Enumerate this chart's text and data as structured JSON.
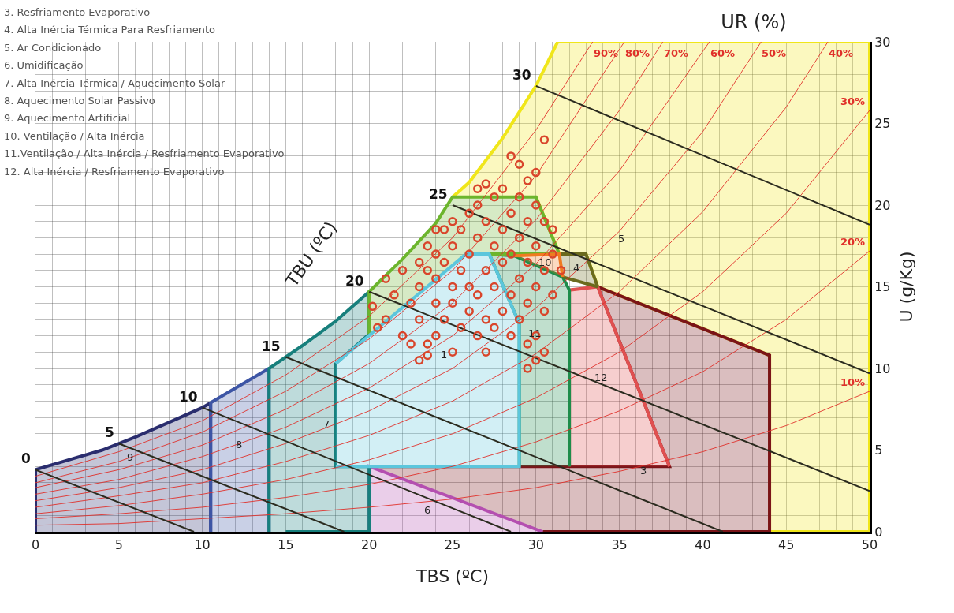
{
  "chart_data": {
    "type": "scatter",
    "title": "UR (%)",
    "xlabel": "TBS (ºC)",
    "ylabel": "U (g/Kg)",
    "xlim": [
      0,
      50
    ],
    "ylim": [
      0,
      30
    ],
    "xticks": [
      0,
      {
        "value": 1,
        "label": null
      },
      {
        "value": 2,
        "label": null
      },
      {
        "value": 3,
        "label": null
      },
      {
        "value": 4,
        "label": null
      },
      5,
      {
        "value": 6,
        "label": null
      },
      {
        "value": 7,
        "label": null
      },
      {
        "value": 8,
        "label": null
      },
      {
        "value": 9,
        "label": null
      },
      10,
      {
        "value": 11,
        "label": null
      },
      {
        "value": 12,
        "label": null
      },
      {
        "value": 13,
        "label": null
      },
      {
        "value": 14,
        "label": null
      },
      15,
      {
        "value": 16,
        "label": null
      },
      {
        "value": 17,
        "label": null
      },
      {
        "value": 18,
        "label": null
      },
      {
        "value": 19,
        "label": null
      },
      20,
      {
        "value": 21,
        "label": null
      },
      {
        "value": 22,
        "label": null
      },
      {
        "value": 23,
        "label": null
      },
      {
        "value": 24,
        "label": null
      },
      25,
      {
        "value": 26,
        "label": null
      },
      {
        "value": 27,
        "label": null
      },
      {
        "value": 28,
        "label": null
      },
      {
        "value": 29,
        "label": null
      },
      30,
      {
        "value": 31,
        "label": null
      },
      {
        "value": 32,
        "label": null
      },
      {
        "value": 33,
        "label": null
      },
      {
        "value": 34,
        "label": null
      },
      35,
      {
        "value": 36,
        "label": null
      },
      {
        "value": 37,
        "label": null
      },
      {
        "value": 38,
        "label": null
      },
      {
        "value": 39,
        "label": null
      },
      40,
      {
        "value": 41,
        "label": null
      },
      {
        "value": 42,
        "label": null
      },
      {
        "value": 43,
        "label": null
      },
      {
        "value": 44,
        "label": null
      },
      45,
      {
        "value": 46,
        "label": null
      },
      {
        "value": 47,
        "label": null
      },
      {
        "value": 48,
        "label": null
      },
      {
        "value": 49,
        "label": null
      },
      50
    ],
    "yticks": [
      0,
      {
        "value": 1,
        "label": null
      },
      {
        "value": 2,
        "label": null
      },
      {
        "value": 3,
        "label": null
      },
      {
        "value": 4,
        "label": null
      },
      5,
      {
        "value": 6,
        "label": null
      },
      {
        "value": 7,
        "label": null
      },
      {
        "value": 8,
        "label": null
      },
      {
        "value": 9,
        "label": null
      },
      10,
      {
        "value": 11,
        "label": null
      },
      {
        "value": 12,
        "label": null
      },
      {
        "value": 13,
        "label": null
      },
      {
        "value": 14,
        "label": null
      },
      15,
      {
        "value": 16,
        "label": null
      },
      {
        "value": 17,
        "label": null
      },
      {
        "value": 18,
        "label": null
      },
      {
        "value": 19,
        "label": null
      },
      20,
      {
        "value": 21,
        "label": null
      },
      {
        "value": 22,
        "label": null
      },
      {
        "value": 23,
        "label": null
      },
      {
        "value": 24,
        "label": null
      },
      25,
      {
        "value": 26,
        "label": null
      },
      {
        "value": 27,
        "label": null
      },
      {
        "value": 28,
        "label": null
      },
      {
        "value": 29,
        "label": null
      },
      30
    ],
    "grid": true,
    "series": [
      {
        "type": "area",
        "name": "5",
        "color": "#f0e619",
        "x": [
          25,
          26,
          28,
          30,
          31.3,
          50,
          50,
          44,
          44,
          33.7,
          33,
          31.4,
          30
        ],
        "values": [
          20.5,
          21.4,
          24.1,
          27.3,
          30,
          30,
          0,
          0,
          10.8,
          15,
          17,
          17,
          20.5
        ]
      },
      {
        "type": "area",
        "name": "3",
        "color": "#7a1418",
        "x": [
          20,
          38,
          33.7,
          44,
          44,
          42,
          40,
          36,
          30.4
        ],
        "values": [
          4,
          4,
          15,
          10.8,
          0,
          0,
          0,
          0,
          0
        ]
      },
      {
        "type": "area",
        "name": "12",
        "color": "#e05050",
        "x": [
          32,
          32,
          33.7,
          38
        ],
        "values": [
          4,
          14.8,
          15,
          4
        ]
      },
      {
        "type": "area",
        "name": "6",
        "color": "#b44fb0",
        "x": [
          20,
          20,
          30.4
        ],
        "values": [
          0,
          4,
          0
        ]
      },
      {
        "type": "area",
        "name": "9",
        "color": "#2a2d6e",
        "x": [
          0,
          0,
          2,
          4,
          6,
          8,
          10,
          10.5,
          10.5
        ],
        "values": [
          0,
          3.8,
          4.4,
          5,
          5.8,
          6.7,
          7.6,
          7.9,
          0
        ]
      },
      {
        "type": "area",
        "name": "8",
        "color": "#3d55a5",
        "x": [
          10.5,
          10.5,
          12,
          14,
          14
        ],
        "values": [
          0,
          7.9,
          8.8,
          10,
          0
        ]
      },
      {
        "type": "area",
        "name": "7",
        "color": "#177f7c",
        "x": [
          14,
          14,
          16,
          18,
          20,
          20,
          18,
          18,
          20,
          20,
          16,
          15
        ],
        "values": [
          0,
          10,
          11.4,
          12.9,
          14.7,
          12.1,
          10.3,
          4,
          4,
          0,
          0,
          0
        ]
      },
      {
        "type": "area",
        "name": "11",
        "color": "#1e8c4a",
        "x": [
          29,
          29,
          27.2,
          28.7,
          31.6,
          32,
          32
        ],
        "values": [
          4,
          12.75,
          17,
          16.9,
          15.6,
          14.8,
          4
        ]
      },
      {
        "type": "area",
        "color": "#6cb52d",
        "x": [
          20,
          20,
          22,
          24,
          25,
          30,
          31.4,
          25.8
        ],
        "values": [
          12.1,
          14.7,
          16.7,
          18.9,
          20.5,
          20.5,
          17,
          17
        ]
      },
      {
        "type": "area",
        "name": "4",
        "color": "#6b6a1e",
        "x": [
          31.4,
          33,
          33.7,
          31.6
        ],
        "values": [
          17,
          17,
          15,
          15.6
        ]
      },
      {
        "type": "area",
        "name": "10",
        "color": "#f07a20",
        "x": [
          28.7,
          31.4,
          31.6
        ],
        "values": [
          16.9,
          17,
          15.6
        ]
      },
      {
        "type": "area",
        "name": "1",
        "color": "#5cc6dc",
        "x": [
          18,
          25.8,
          27.2,
          29,
          29,
          18
        ],
        "values": [
          10.3,
          17,
          17,
          12.75,
          4,
          4
        ]
      },
      {
        "type": "line",
        "name": "90%",
        "color": "#e0302a",
        "x": [
          33.4,
          30,
          25,
          20,
          15,
          10,
          5,
          0
        ],
        "values": [
          30,
          24.6,
          18,
          13.2,
          9.6,
          6.8,
          4.9,
          3.4
        ]
      },
      {
        "type": "line",
        "name": "80%",
        "color": "#e0302a",
        "x": [
          35.3,
          30,
          25,
          20,
          15,
          10,
          5,
          0
        ],
        "values": [
          30,
          21.8,
          16,
          11.8,
          8.6,
          6.1,
          4.3,
          3
        ]
      },
      {
        "type": "line",
        "name": "70%",
        "color": "#e0302a",
        "x": [
          37.6,
          35,
          30,
          25,
          20,
          15,
          10,
          5,
          0
        ],
        "values": [
          30,
          25.8,
          19.1,
          14,
          10.3,
          7.5,
          5.3,
          3.8,
          2.7
        ]
      },
      {
        "type": "line",
        "name": "60%",
        "color": "#e0302a",
        "x": [
          40.4,
          35,
          30,
          25,
          20,
          15,
          10,
          5,
          0
        ],
        "values": [
          30,
          22.1,
          16.4,
          12,
          8.8,
          6.4,
          4.6,
          3.2,
          2.3
        ]
      },
      {
        "type": "line",
        "name": "50%",
        "color": "#e0302a",
        "x": [
          43.5,
          40,
          35,
          30,
          25,
          20,
          15,
          10,
          5,
          0
        ],
        "values": [
          30,
          24.5,
          18.4,
          13.7,
          10,
          7.4,
          5.4,
          3.8,
          2.7,
          1.9
        ]
      },
      {
        "type": "line",
        "name": "40%",
        "color": "#e0302a",
        "x": [
          47.5,
          45,
          40,
          35,
          30,
          25,
          20,
          15,
          10,
          5,
          0
        ],
        "values": [
          30,
          26,
          19.6,
          14.7,
          10.9,
          8,
          5.9,
          4.3,
          3,
          2.2,
          1.5
        ]
      },
      {
        "type": "line",
        "name": "30%",
        "color": "#e0302a",
        "x": [
          50,
          45,
          40,
          35,
          30,
          25,
          20,
          15,
          10,
          5,
          0
        ],
        "values": [
          25.8,
          19.5,
          14.7,
          11,
          8.2,
          6,
          4.4,
          3.2,
          2.3,
          1.6,
          1.1
        ]
      },
      {
        "type": "line",
        "name": "20%",
        "color": "#e0302a",
        "x": [
          50,
          45,
          40,
          35,
          30,
          25,
          20,
          15,
          10,
          5,
          0
        ],
        "values": [
          17.2,
          13,
          9.8,
          7.4,
          5.5,
          4,
          2.9,
          2.1,
          1.5,
          1.1,
          0.8
        ]
      },
      {
        "type": "line",
        "name": "10%",
        "color": "#e0302a",
        "x": [
          50,
          45,
          40,
          35,
          30,
          25,
          20,
          15,
          10,
          5,
          0
        ],
        "values": [
          8.6,
          6.5,
          4.9,
          3.7,
          2.7,
          2,
          1.5,
          1.1,
          0.8,
          0.5,
          0.4
        ]
      },
      {
        "type": "line",
        "name": "0",
        "color": "#2b2b1f",
        "x": [
          0,
          9.5
        ],
        "values": [
          3.8,
          0
        ]
      },
      {
        "type": "line",
        "name": "5",
        "color": "#2b2b1f",
        "x": [
          5,
          18.5
        ],
        "values": [
          5.4,
          0
        ]
      },
      {
        "type": "line",
        "name": "10",
        "color": "#2b2b1f",
        "x": [
          10,
          28.5
        ],
        "values": [
          7.6,
          0
        ]
      },
      {
        "type": "line",
        "name": "15",
        "color": "#2b2b1f",
        "x": [
          15,
          41.2
        ],
        "values": [
          10.7,
          0
        ]
      },
      {
        "type": "line",
        "name": "20",
        "color": "#2b2b1f",
        "x": [
          20,
          50
        ],
        "values": [
          14.7,
          2.5
        ]
      },
      {
        "type": "line",
        "name": "25",
        "color": "#2b2b1f",
        "x": [
          25,
          50
        ],
        "values": [
          20,
          9.7
        ]
      },
      {
        "type": "line",
        "name": "30",
        "color": "#2b2b1f",
        "x": [
          30,
          40,
          50
        ],
        "values": [
          27.3,
          23.05,
          18.8
        ]
      },
      {
        "marker": "circle",
        "color": "#d9452b",
        "x": [
          20.2,
          20.5,
          21,
          21.5,
          21,
          22,
          22,
          22.5,
          22.5,
          23,
          23,
          23,
          23,
          23.5,
          23.5,
          23.5,
          24,
          24,
          24,
          24,
          24,
          24.5,
          24.5,
          24.5,
          25,
          25,
          25,
          25,
          25,
          25.5,
          25.5,
          25.5,
          26,
          26,
          26,
          26,
          26.5,
          26.5,
          26.5,
          26.5,
          27,
          27,
          27,
          27,
          27.5,
          27.5,
          27.5,
          27.5,
          28,
          28,
          28,
          28,
          28.5,
          28.5,
          28.5,
          28.5,
          29,
          29,
          29,
          29,
          29,
          29.5,
          29.5,
          29.5,
          29.5,
          29.5,
          30,
          30,
          30,
          30,
          30,
          30.5,
          30.5,
          30.5,
          30.5,
          31,
          31,
          31,
          31.5,
          30,
          29.5,
          30.5,
          23.5,
          27,
          28.5,
          26.5
        ],
        "values": [
          13.8,
          12.5,
          13,
          14.5,
          15.5,
          16,
          12,
          11.5,
          14,
          15,
          16.5,
          13,
          10.5,
          11.5,
          16,
          17.5,
          12,
          14,
          15.5,
          17,
          18.5,
          13,
          16.5,
          18.5,
          11,
          14,
          15,
          17.5,
          19,
          12.5,
          16,
          18.5,
          13.5,
          15,
          17,
          19.5,
          12,
          14.5,
          18,
          20,
          11,
          13,
          16,
          19,
          12.5,
          15,
          17.5,
          20.5,
          13.5,
          16.5,
          18.5,
          21,
          12,
          14.5,
          17,
          19.5,
          13,
          15.5,
          18,
          20.5,
          22.5,
          11.5,
          14,
          16.5,
          19,
          21.5,
          12,
          15,
          17.5,
          20,
          22,
          13.5,
          16,
          19,
          24,
          14.5,
          17,
          18.5,
          16,
          10.5,
          10,
          11,
          10.8,
          21.3,
          23,
          21
        ]
      }
    ],
    "annotations": [
      "3. Resfriamento Evaporativo",
      "4. Alta Inércia Térmica Para Resfriamento",
      "5. Ar Condicionado",
      "6. Umidificação",
      "7. Alta Inércia Térmica / Aquecimento Solar",
      "8. Aquecimento Solar Passivo",
      "9. Aquecimento Artificial",
      "10. Ventilação / Alta Inércia",
      "11.Ventilação / Alta Inércia / Resfriamento Evaporativo",
      "12. Alta Inércia / Resfriamento Evaporativo",
      {
        "text": "TBU (ºC)",
        "x": 17,
        "y": 12.15
      }
    ]
  }
}
